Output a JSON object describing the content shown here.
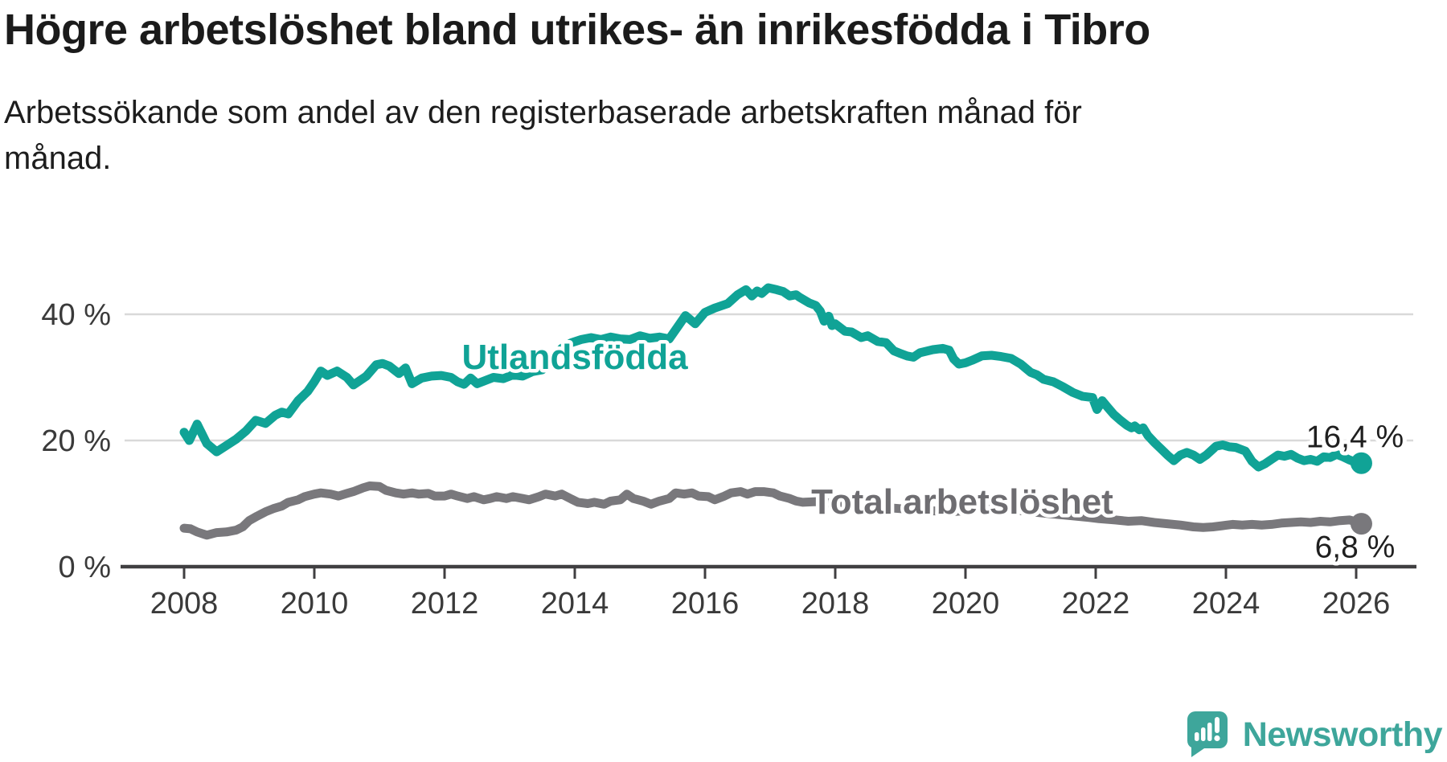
{
  "title": "Högre arbetslöshet bland utrikes- än inrikesfödda i Tibro",
  "subtitle": {
    "line1": "Arbetssökande som andel av den registerbaserade arbetskraften månad för",
    "line2": "månad."
  },
  "branding": {
    "wordmark": "Newsworthy"
  },
  "colors": {
    "accent_teal": "#10a396",
    "line_gray": "#79787c",
    "label_gray": "#6e6d71",
    "grid": "#d9d9d9",
    "axis": "#403f41",
    "axis_text": "#3a3a3a",
    "value_text": "#1f1f1f",
    "brand_teal": "#3ea69b"
  },
  "chart_data": {
    "type": "line",
    "title": "Högre arbetslöshet bland utrikes- än inrikesfödda i Tibro",
    "subtitle": "Arbetssökande som andel av den registerbaserade arbetskraften månad för månad.",
    "xlabel": "",
    "ylabel": "",
    "x_axis": {
      "tick_labels": [
        "2008",
        "2010",
        "2012",
        "2014",
        "2016",
        "2018",
        "2020",
        "2022",
        "2024",
        "2026"
      ],
      "tick_values": [
        2008,
        2010,
        2012,
        2014,
        2016,
        2018,
        2020,
        2022,
        2024,
        2026
      ],
      "range": [
        2007.1,
        2026.9
      ]
    },
    "y_axis": {
      "tick_labels": [
        "0 %",
        "20 %",
        "40 %"
      ],
      "tick_values": [
        0,
        20,
        40
      ],
      "range": [
        0,
        46
      ],
      "gridlines": true
    },
    "legend_position": "inline-labels",
    "series": [
      {
        "name": "Utlandsfödda",
        "color": "#10a396",
        "end_label": "16,4 %",
        "end_value": 16.4,
        "points": [
          [
            2008.0,
            21.3
          ],
          [
            2008.08,
            20.0
          ],
          [
            2008.2,
            22.6
          ],
          [
            2008.35,
            19.5
          ],
          [
            2008.5,
            18.2
          ],
          [
            2008.65,
            19.2
          ],
          [
            2008.8,
            20.2
          ],
          [
            2008.95,
            21.5
          ],
          [
            2009.1,
            23.2
          ],
          [
            2009.25,
            22.7
          ],
          [
            2009.4,
            24.0
          ],
          [
            2009.5,
            24.5
          ],
          [
            2009.6,
            24.2
          ],
          [
            2009.75,
            26.3
          ],
          [
            2009.9,
            27.8
          ],
          [
            2010.0,
            29.3
          ],
          [
            2010.1,
            31.0
          ],
          [
            2010.2,
            30.3
          ],
          [
            2010.35,
            31.0
          ],
          [
            2010.5,
            30.0
          ],
          [
            2010.6,
            28.8
          ],
          [
            2010.7,
            29.5
          ],
          [
            2010.8,
            30.2
          ],
          [
            2010.95,
            32.0
          ],
          [
            2011.05,
            32.2
          ],
          [
            2011.15,
            31.8
          ],
          [
            2011.3,
            30.6
          ],
          [
            2011.4,
            31.5
          ],
          [
            2011.5,
            29.0
          ],
          [
            2011.65,
            29.9
          ],
          [
            2011.8,
            30.2
          ],
          [
            2011.95,
            30.3
          ],
          [
            2012.1,
            30.0
          ],
          [
            2012.2,
            29.3
          ],
          [
            2012.3,
            28.9
          ],
          [
            2012.4,
            29.9
          ],
          [
            2012.5,
            29.0
          ],
          [
            2012.6,
            29.4
          ],
          [
            2012.75,
            30.0
          ],
          [
            2012.9,
            29.8
          ],
          [
            2013.05,
            30.4
          ],
          [
            2013.2,
            30.2
          ],
          [
            2013.35,
            30.9
          ],
          [
            2013.5,
            31.2
          ],
          [
            2013.65,
            32.8
          ],
          [
            2013.8,
            34.6
          ],
          [
            2013.95,
            35.5
          ],
          [
            2014.1,
            36.0
          ],
          [
            2014.25,
            36.3
          ],
          [
            2014.4,
            36.0
          ],
          [
            2014.55,
            36.4
          ],
          [
            2014.7,
            36.1
          ],
          [
            2014.85,
            36.0
          ],
          [
            2015.0,
            36.6
          ],
          [
            2015.15,
            36.2
          ],
          [
            2015.3,
            36.4
          ],
          [
            2015.45,
            36.1
          ],
          [
            2015.6,
            38.3
          ],
          [
            2015.7,
            39.8
          ],
          [
            2015.85,
            38.5
          ],
          [
            2016.0,
            40.3
          ],
          [
            2016.15,
            41.0
          ],
          [
            2016.35,
            41.7
          ],
          [
            2016.5,
            43.1
          ],
          [
            2016.63,
            43.9
          ],
          [
            2016.72,
            42.9
          ],
          [
            2016.8,
            43.7
          ],
          [
            2016.87,
            43.3
          ],
          [
            2016.97,
            44.2
          ],
          [
            2017.1,
            43.9
          ],
          [
            2017.2,
            43.6
          ],
          [
            2017.3,
            42.9
          ],
          [
            2017.4,
            43.1
          ],
          [
            2017.45,
            42.7
          ],
          [
            2017.6,
            41.8
          ],
          [
            2017.7,
            41.4
          ],
          [
            2017.77,
            40.5
          ],
          [
            2017.83,
            38.9
          ],
          [
            2017.9,
            39.7
          ],
          [
            2017.95,
            38.2
          ],
          [
            2018.0,
            38.5
          ],
          [
            2018.15,
            37.3
          ],
          [
            2018.25,
            37.2
          ],
          [
            2018.4,
            36.3
          ],
          [
            2018.5,
            36.6
          ],
          [
            2018.65,
            35.7
          ],
          [
            2018.78,
            35.5
          ],
          [
            2018.9,
            34.2
          ],
          [
            2019.0,
            33.8
          ],
          [
            2019.1,
            33.4
          ],
          [
            2019.2,
            33.2
          ],
          [
            2019.3,
            33.9
          ],
          [
            2019.5,
            34.4
          ],
          [
            2019.65,
            34.6
          ],
          [
            2019.75,
            34.3
          ],
          [
            2019.82,
            32.9
          ],
          [
            2019.9,
            32.1
          ],
          [
            2020.0,
            32.3
          ],
          [
            2020.1,
            32.7
          ],
          [
            2020.25,
            33.4
          ],
          [
            2020.4,
            33.5
          ],
          [
            2020.55,
            33.3
          ],
          [
            2020.7,
            33.0
          ],
          [
            2020.85,
            32.1
          ],
          [
            2021.0,
            30.8
          ],
          [
            2021.1,
            30.4
          ],
          [
            2021.2,
            29.7
          ],
          [
            2021.35,
            29.3
          ],
          [
            2021.5,
            28.5
          ],
          [
            2021.65,
            27.6
          ],
          [
            2021.8,
            27.0
          ],
          [
            2021.95,
            26.8
          ],
          [
            2022.02,
            24.9
          ],
          [
            2022.1,
            26.3
          ],
          [
            2022.18,
            25.3
          ],
          [
            2022.28,
            24.1
          ],
          [
            2022.38,
            23.2
          ],
          [
            2022.48,
            22.4
          ],
          [
            2022.55,
            22.0
          ],
          [
            2022.6,
            22.3
          ],
          [
            2022.67,
            21.7
          ],
          [
            2022.73,
            22.0
          ],
          [
            2022.8,
            20.8
          ],
          [
            2022.9,
            19.7
          ],
          [
            2023.0,
            18.7
          ],
          [
            2023.1,
            17.7
          ],
          [
            2023.2,
            16.8
          ],
          [
            2023.3,
            17.7
          ],
          [
            2023.4,
            18.1
          ],
          [
            2023.5,
            17.7
          ],
          [
            2023.6,
            17.0
          ],
          [
            2023.7,
            17.7
          ],
          [
            2023.85,
            19.1
          ],
          [
            2023.95,
            19.3
          ],
          [
            2024.05,
            19.0
          ],
          [
            2024.15,
            18.9
          ],
          [
            2024.3,
            18.3
          ],
          [
            2024.4,
            16.7
          ],
          [
            2024.5,
            15.8
          ],
          [
            2024.6,
            16.3
          ],
          [
            2024.7,
            17.0
          ],
          [
            2024.8,
            17.7
          ],
          [
            2024.9,
            17.5
          ],
          [
            2025.0,
            17.8
          ],
          [
            2025.1,
            17.2
          ],
          [
            2025.2,
            16.8
          ],
          [
            2025.3,
            17.0
          ],
          [
            2025.4,
            16.7
          ],
          [
            2025.5,
            17.4
          ],
          [
            2025.6,
            17.3
          ],
          [
            2025.7,
            17.8
          ],
          [
            2025.8,
            17.4
          ],
          [
            2025.9,
            16.9
          ],
          [
            2026.0,
            16.5
          ],
          [
            2026.08,
            16.4
          ]
        ]
      },
      {
        "name": "Total arbetslöshet",
        "color": "#79787c",
        "end_label": "6,8 %",
        "end_value": 6.8,
        "points": [
          [
            2008.0,
            6.1
          ],
          [
            2008.1,
            6.0
          ],
          [
            2008.2,
            5.5
          ],
          [
            2008.35,
            5.0
          ],
          [
            2008.5,
            5.4
          ],
          [
            2008.65,
            5.5
          ],
          [
            2008.8,
            5.8
          ],
          [
            2008.9,
            6.3
          ],
          [
            2009.0,
            7.3
          ],
          [
            2009.12,
            8.0
          ],
          [
            2009.25,
            8.7
          ],
          [
            2009.37,
            9.2
          ],
          [
            2009.5,
            9.6
          ],
          [
            2009.6,
            10.2
          ],
          [
            2009.75,
            10.6
          ],
          [
            2009.85,
            11.1
          ],
          [
            2010.0,
            11.5
          ],
          [
            2010.1,
            11.7
          ],
          [
            2010.25,
            11.5
          ],
          [
            2010.37,
            11.2
          ],
          [
            2010.5,
            11.6
          ],
          [
            2010.6,
            11.9
          ],
          [
            2010.75,
            12.5
          ],
          [
            2010.85,
            12.8
          ],
          [
            2011.0,
            12.7
          ],
          [
            2011.1,
            12.1
          ],
          [
            2011.25,
            11.7
          ],
          [
            2011.37,
            11.5
          ],
          [
            2011.5,
            11.7
          ],
          [
            2011.6,
            11.5
          ],
          [
            2011.75,
            11.6
          ],
          [
            2011.85,
            11.2
          ],
          [
            2012.0,
            11.2
          ],
          [
            2012.1,
            11.5
          ],
          [
            2012.2,
            11.2
          ],
          [
            2012.35,
            10.8
          ],
          [
            2012.45,
            11.1
          ],
          [
            2012.6,
            10.6
          ],
          [
            2012.7,
            10.8
          ],
          [
            2012.8,
            11.1
          ],
          [
            2012.95,
            10.8
          ],
          [
            2013.05,
            11.1
          ],
          [
            2013.2,
            10.8
          ],
          [
            2013.3,
            10.6
          ],
          [
            2013.45,
            11.1
          ],
          [
            2013.55,
            11.5
          ],
          [
            2013.7,
            11.2
          ],
          [
            2013.8,
            11.5
          ],
          [
            2013.95,
            10.7
          ],
          [
            2014.05,
            10.2
          ],
          [
            2014.2,
            10.0
          ],
          [
            2014.3,
            10.2
          ],
          [
            2014.45,
            9.9
          ],
          [
            2014.55,
            10.4
          ],
          [
            2014.7,
            10.6
          ],
          [
            2014.8,
            11.5
          ],
          [
            2014.9,
            10.8
          ],
          [
            2015.05,
            10.4
          ],
          [
            2015.17,
            9.9
          ],
          [
            2015.3,
            10.4
          ],
          [
            2015.45,
            10.8
          ],
          [
            2015.55,
            11.7
          ],
          [
            2015.68,
            11.5
          ],
          [
            2015.8,
            11.7
          ],
          [
            2015.9,
            11.2
          ],
          [
            2016.05,
            11.1
          ],
          [
            2016.15,
            10.6
          ],
          [
            2016.3,
            11.2
          ],
          [
            2016.4,
            11.7
          ],
          [
            2016.55,
            11.9
          ],
          [
            2016.65,
            11.5
          ],
          [
            2016.77,
            11.9
          ],
          [
            2016.9,
            11.9
          ],
          [
            2017.05,
            11.7
          ],
          [
            2017.15,
            11.2
          ],
          [
            2017.3,
            10.8
          ],
          [
            2017.4,
            10.4
          ],
          [
            2017.5,
            10.2
          ],
          [
            2017.7,
            10.3
          ],
          [
            2018.0,
            10.0
          ],
          [
            2018.3,
            9.8
          ],
          [
            2018.6,
            9.5
          ],
          [
            2019.0,
            9.2
          ],
          [
            2019.4,
            8.9
          ],
          [
            2019.8,
            8.7
          ],
          [
            2020.0,
            8.9
          ],
          [
            2020.25,
            9.4
          ],
          [
            2020.5,
            9.3
          ],
          [
            2020.75,
            9.0
          ],
          [
            2021.0,
            8.7
          ],
          [
            2021.3,
            8.4
          ],
          [
            2021.6,
            8.1
          ],
          [
            2021.9,
            7.8
          ],
          [
            2022.05,
            7.6
          ],
          [
            2022.3,
            7.4
          ],
          [
            2022.5,
            7.2
          ],
          [
            2022.7,
            7.3
          ],
          [
            2022.9,
            7.0
          ],
          [
            2023.1,
            6.8
          ],
          [
            2023.3,
            6.6
          ],
          [
            2023.5,
            6.3
          ],
          [
            2023.65,
            6.2
          ],
          [
            2023.8,
            6.3
          ],
          [
            2023.95,
            6.5
          ],
          [
            2024.1,
            6.7
          ],
          [
            2024.25,
            6.6
          ],
          [
            2024.4,
            6.7
          ],
          [
            2024.55,
            6.6
          ],
          [
            2024.7,
            6.7
          ],
          [
            2024.85,
            6.9
          ],
          [
            2025.0,
            7.0
          ],
          [
            2025.15,
            7.1
          ],
          [
            2025.3,
            7.0
          ],
          [
            2025.45,
            7.2
          ],
          [
            2025.6,
            7.1
          ],
          [
            2025.75,
            7.3
          ],
          [
            2025.9,
            7.4
          ],
          [
            2026.0,
            7.1
          ],
          [
            2026.08,
            6.8
          ]
        ]
      }
    ]
  }
}
